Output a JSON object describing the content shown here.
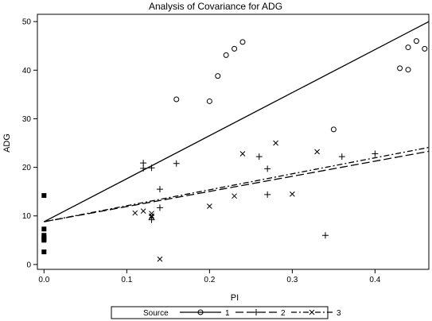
{
  "chart_data": {
    "type": "scatter",
    "title": "Analysis of Covariance for ADG",
    "xlabel": "PI",
    "ylabel": "ADG",
    "xlim": [
      -0.008,
      0.465
    ],
    "ylim": [
      -1,
      51.5
    ],
    "xticks": [
      0.0,
      0.1,
      0.2,
      0.3,
      0.4
    ],
    "xtick_labels": [
      "0.0",
      "0.1",
      "0.2",
      "0.3",
      "0.4"
    ],
    "yticks": [
      0,
      10,
      20,
      30,
      40,
      50
    ],
    "ytick_labels": [
      "0",
      "10",
      "20",
      "30",
      "40",
      "50"
    ],
    "grid": false,
    "legend": {
      "position": "bottom",
      "title": "Source",
      "entries": [
        "1",
        "2",
        "3"
      ]
    },
    "squares": {
      "x": [
        0,
        0,
        0,
        0,
        0,
        0,
        0
      ],
      "y": [
        14.2,
        7.3,
        6.0,
        5.6,
        5.2,
        5.0,
        2.6
      ]
    },
    "series": [
      {
        "name": "1",
        "marker": "circle",
        "x": [
          0.16,
          0.2,
          0.21,
          0.22,
          0.23,
          0.24,
          0.35,
          0.43,
          0.44,
          0.44,
          0.45,
          0.46
        ],
        "y": [
          34.0,
          33.6,
          38.8,
          43.1,
          44.4,
          45.8,
          27.8,
          40.4,
          40.1,
          44.7,
          46.0,
          44.4
        ],
        "line": {
          "x": [
            0.0,
            0.465
          ],
          "y": [
            8.8,
            50.0
          ],
          "dash": "solid"
        }
      },
      {
        "name": "2",
        "marker": "plus",
        "x": [
          0.12,
          0.12,
          0.13,
          0.13,
          0.14,
          0.14,
          0.16,
          0.26,
          0.27,
          0.27,
          0.34,
          0.36,
          0.4
        ],
        "y": [
          20.9,
          19.8,
          19.9,
          9.2,
          15.5,
          11.7,
          20.8,
          22.2,
          19.7,
          14.4,
          6.0,
          22.2,
          22.8
        ],
        "line": {
          "x": [
            0.0,
            0.465
          ],
          "y": [
            8.8,
            23.3
          ],
          "dash": "long-dash"
        }
      },
      {
        "name": "3",
        "marker": "x",
        "x": [
          0.11,
          0.12,
          0.13,
          0.13,
          0.13,
          0.14,
          0.2,
          0.23,
          0.24,
          0.28,
          0.3,
          0.33
        ],
        "y": [
          10.6,
          11.0,
          10.5,
          10.0,
          9.8,
          1.1,
          12.0,
          14.1,
          22.8,
          25.0,
          14.5,
          23.2
        ],
        "line": {
          "x": [
            0.0,
            0.465
          ],
          "y": [
            8.8,
            24.1
          ],
          "dash": "dash-dot"
        }
      }
    ]
  }
}
